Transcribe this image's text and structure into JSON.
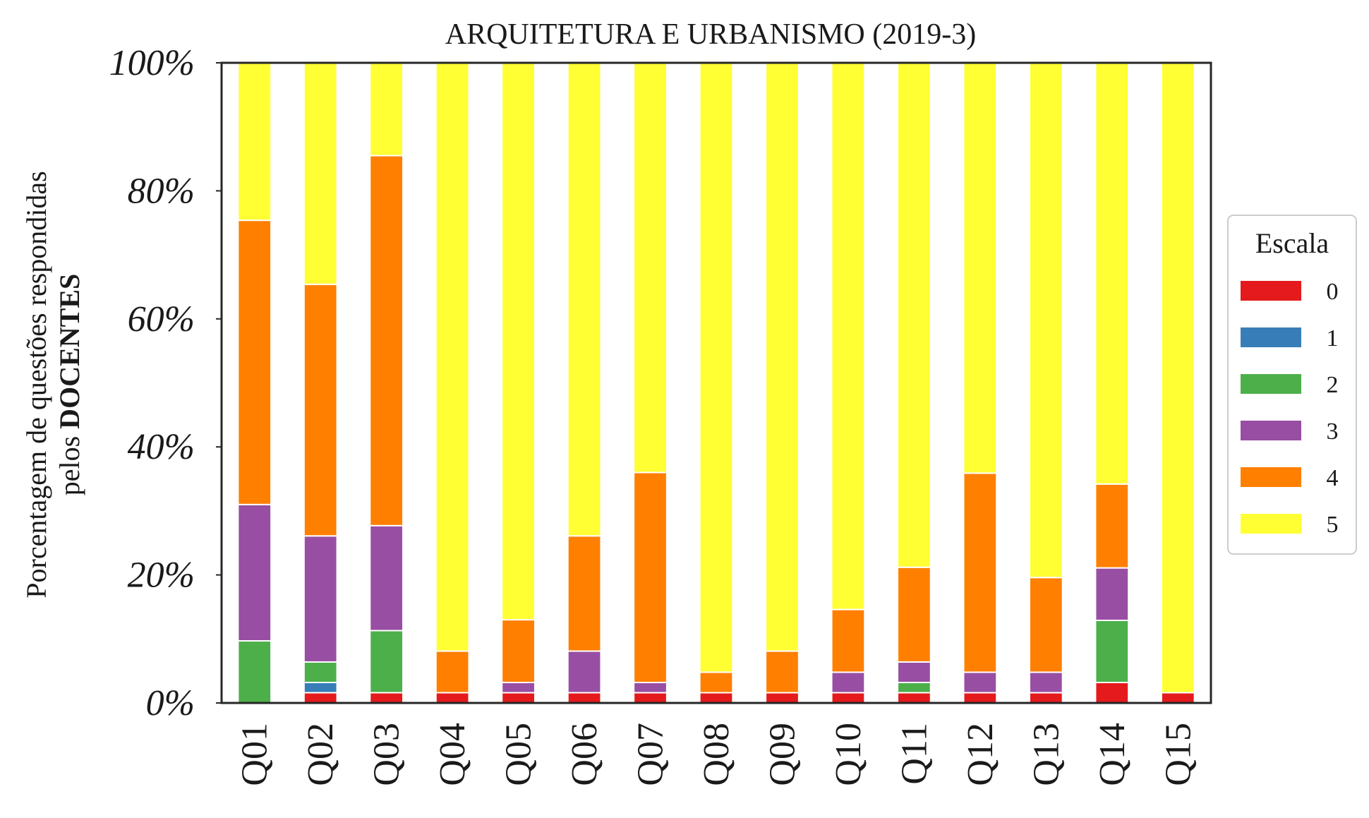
{
  "chart_data": {
    "type": "bar",
    "stacked": true,
    "title": "ARQUITETURA E URBANISMO (2019-3)",
    "ylabel_line1": "Porcentagem de questões respondidas",
    "ylabel_line2_prefix": "pelos ",
    "ylabel_line2_bold": "DOCENTES",
    "ylim": [
      0,
      100
    ],
    "yticks": [
      0,
      20,
      40,
      60,
      80,
      100
    ],
    "ytick_labels": [
      "0%",
      "20%",
      "40%",
      "60%",
      "80%",
      "100%"
    ],
    "categories": [
      "Q01",
      "Q02",
      "Q03",
      "Q04",
      "Q05",
      "Q06",
      "Q07",
      "Q08",
      "Q09",
      "Q10",
      "Q11",
      "Q12",
      "Q13",
      "Q14",
      "Q15"
    ],
    "legend": {
      "title": "Escala",
      "placement": "center right, outside plot"
    },
    "series": [
      {
        "name": "0",
        "color": "#e41a1c",
        "values": [
          0,
          1.6,
          1.6,
          1.6,
          1.6,
          1.6,
          1.6,
          1.6,
          1.6,
          1.6,
          1.6,
          1.6,
          1.6,
          3.2,
          1.6
        ]
      },
      {
        "name": "1",
        "color": "#377eb8",
        "values": [
          0,
          1.6,
          0,
          0,
          0,
          0,
          0,
          0,
          0,
          0,
          0,
          0,
          0,
          0,
          0
        ]
      },
      {
        "name": "2",
        "color": "#4daf4a",
        "values": [
          9.7,
          3.2,
          9.7,
          0,
          0,
          0,
          0,
          0,
          0,
          0,
          1.6,
          0,
          0,
          9.7,
          0
        ]
      },
      {
        "name": "3",
        "color": "#984ea3",
        "values": [
          21.3,
          19.7,
          16.4,
          0,
          1.6,
          6.5,
          1.6,
          0,
          0,
          3.2,
          3.2,
          3.2,
          3.2,
          8.2,
          0
        ]
      },
      {
        "name": "4",
        "color": "#ff7f00",
        "values": [
          44.4,
          39.3,
          57.8,
          6.5,
          9.8,
          18.0,
          32.8,
          3.2,
          6.5,
          9.8,
          14.8,
          31.1,
          14.8,
          13.1,
          0
        ]
      },
      {
        "name": "5",
        "color": "#ffff33",
        "values": [
          24.6,
          34.6,
          14.5,
          91.9,
          87.0,
          73.9,
          64.0,
          95.2,
          91.9,
          85.4,
          78.8,
          64.1,
          80.4,
          65.8,
          98.4
        ]
      }
    ]
  }
}
